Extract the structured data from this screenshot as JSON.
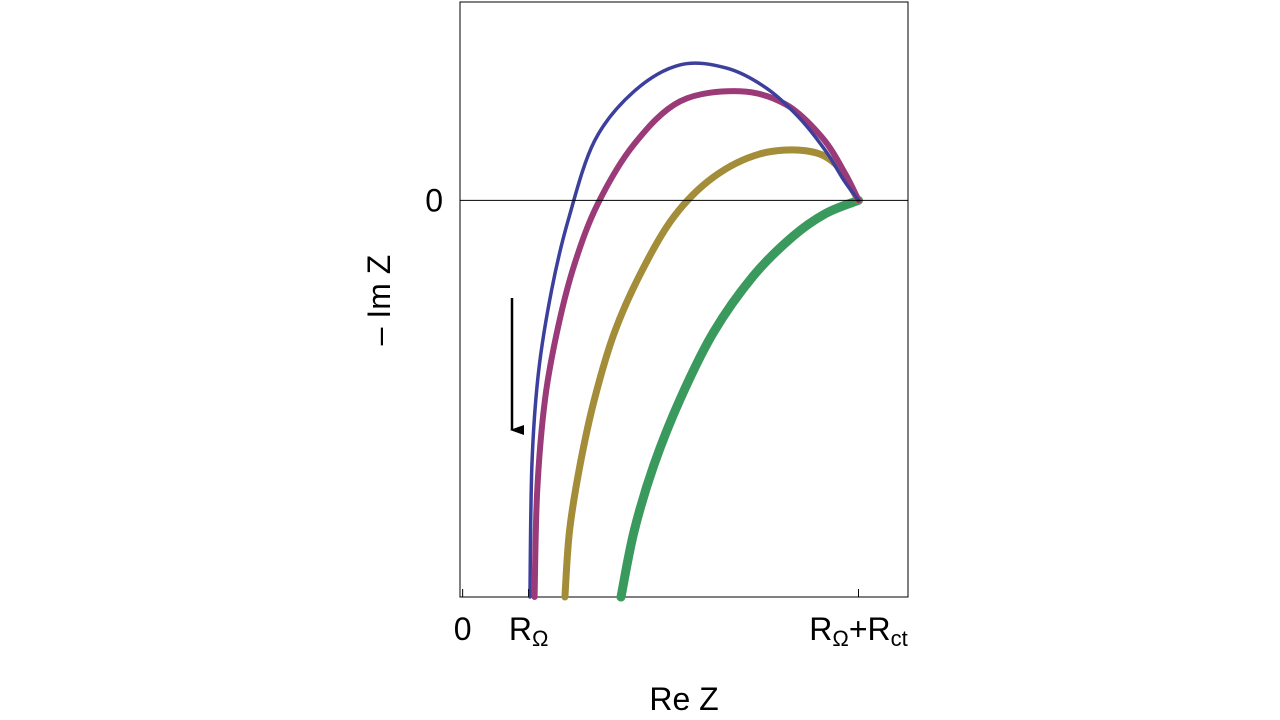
{
  "chart_data": {
    "type": "line",
    "xlabel": "Re Z",
    "ylabel": "– Im Z",
    "x_ticks": [
      {
        "x": 0,
        "label": "0"
      },
      {
        "x": 1,
        "main": "R",
        "sub": "Ω"
      },
      {
        "x": 6,
        "main": "R",
        "sub": "Ω",
        "plus": "+",
        "main2": "R",
        "sub2": "ct"
      }
    ],
    "y_ticks": [
      {
        "y": 0,
        "label": "0"
      }
    ],
    "xlim": [
      -0.04,
      6.75
    ],
    "ylim": [
      -6.0,
      3.0
    ],
    "grid": false,
    "zero_line": true,
    "annotation": {
      "type": "arrow",
      "direction": "down"
    },
    "series": [
      {
        "color": "#3c3f9c",
        "width": 3.5,
        "points": [
          [
            1.02,
            -6.0
          ],
          [
            1.05,
            -4.0
          ],
          [
            1.15,
            -2.6
          ],
          [
            1.35,
            -1.35
          ],
          [
            1.6,
            -0.3
          ],
          [
            2.0,
            0.9
          ],
          [
            2.6,
            1.65
          ],
          [
            3.3,
            2.05
          ],
          [
            4.0,
            2.0
          ],
          [
            4.6,
            1.7
          ],
          [
            5.1,
            1.25
          ],
          [
            5.5,
            0.75
          ],
          [
            5.78,
            0.3
          ],
          [
            6.0,
            0
          ]
        ]
      },
      {
        "color": "#9b3a78",
        "width": 6,
        "points": [
          [
            1.09,
            -6.0
          ],
          [
            1.13,
            -4.4
          ],
          [
            1.25,
            -3.0
          ],
          [
            1.45,
            -1.9
          ],
          [
            1.7,
            -0.95
          ],
          [
            2.05,
            -0.05
          ],
          [
            2.6,
            0.85
          ],
          [
            3.3,
            1.5
          ],
          [
            4.2,
            1.65
          ],
          [
            4.9,
            1.45
          ],
          [
            5.45,
            0.95
          ],
          [
            5.8,
            0.4
          ],
          [
            6.0,
            0
          ]
        ]
      },
      {
        "color": "#a38d38",
        "width": 7,
        "points": [
          [
            1.55,
            -6.0
          ],
          [
            1.62,
            -5.0
          ],
          [
            1.78,
            -4.0
          ],
          [
            2.0,
            -3.0
          ],
          [
            2.3,
            -2.0
          ],
          [
            2.7,
            -1.1
          ],
          [
            3.2,
            -0.25
          ],
          [
            3.8,
            0.35
          ],
          [
            4.5,
            0.7
          ],
          [
            5.2,
            0.75
          ],
          [
            5.65,
            0.55
          ],
          [
            6.0,
            0
          ]
        ]
      },
      {
        "color": "#3a9a5e",
        "width": 9,
        "points": [
          [
            2.4,
            -6.0
          ],
          [
            2.6,
            -5.0
          ],
          [
            2.9,
            -4.0
          ],
          [
            3.3,
            -3.0
          ],
          [
            3.8,
            -2.0
          ],
          [
            4.4,
            -1.15
          ],
          [
            5.0,
            -0.55
          ],
          [
            5.5,
            -0.2
          ],
          [
            6.0,
            0
          ]
        ]
      }
    ]
  }
}
